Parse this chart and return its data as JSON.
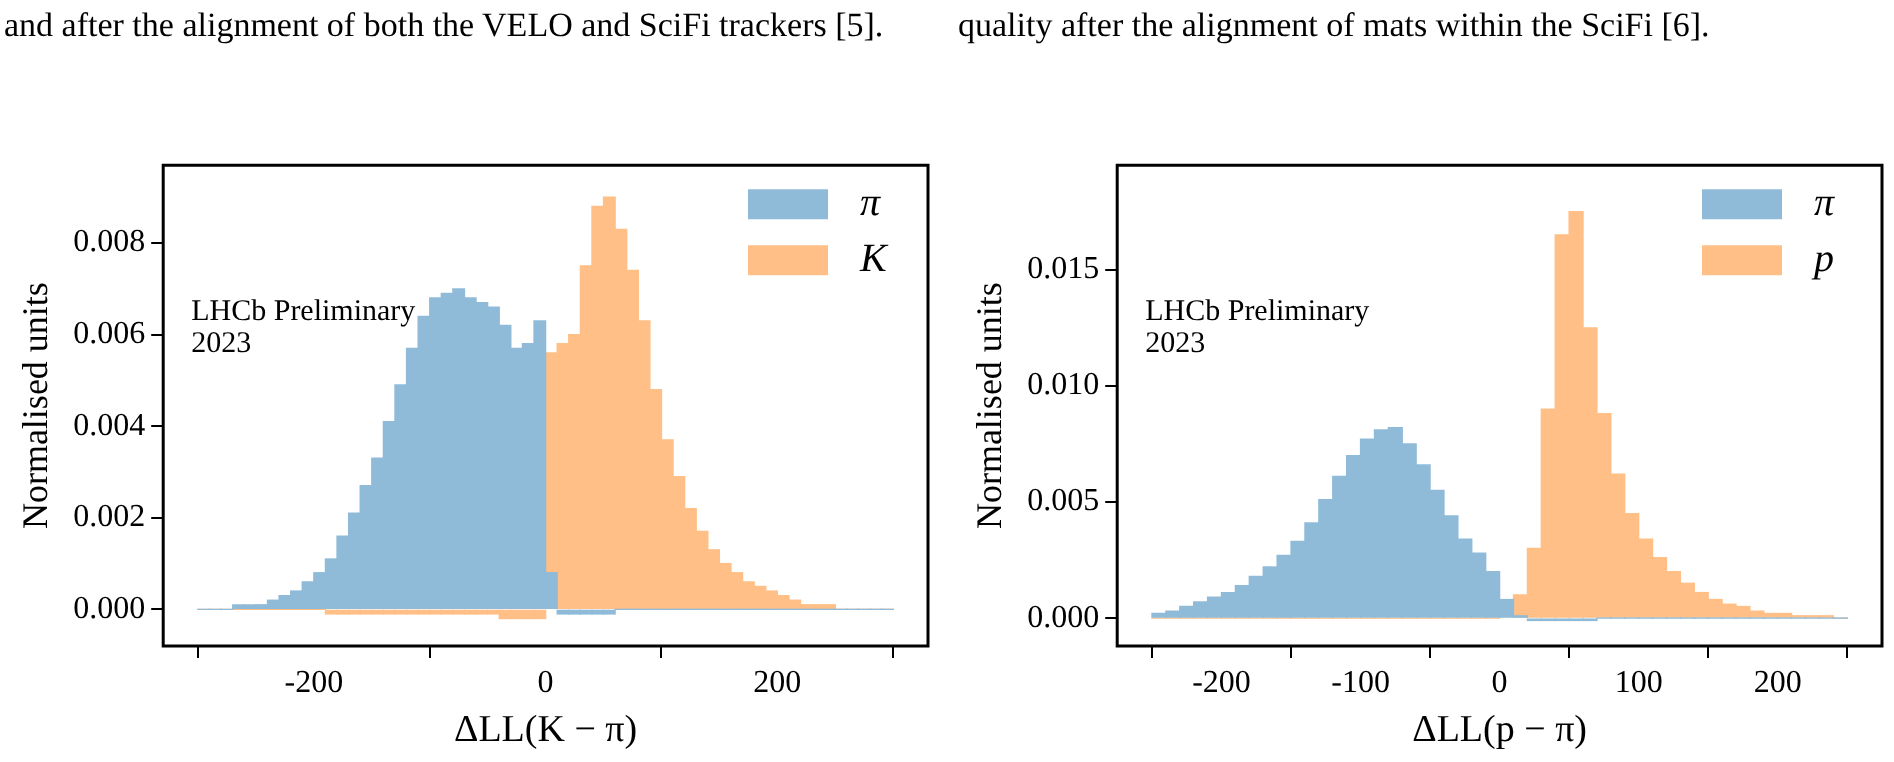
{
  "chart_data": [
    {
      "type": "histogram",
      "xlabel": "ΔLL(K − π)",
      "ylabel": "Normalised units",
      "legend": "top right",
      "grid": false,
      "annotations": [
        "and after the alignment of both the VELO and SciFi trackers [5].",
        "LHCb Preliminary\n2023"
      ],
      "bins": [
        -300,
        -290,
        -280,
        -270,
        -260,
        -250,
        -240,
        -230,
        -220,
        -210,
        -200,
        -190,
        -180,
        -170,
        -160,
        -150,
        -140,
        -130,
        -120,
        -110,
        -100,
        -90,
        -80,
        -70,
        -60,
        -50,
        -40,
        -30,
        -20,
        -10,
        0,
        10,
        20,
        30,
        40,
        50,
        60,
        70,
        80,
        90,
        100,
        110,
        120,
        130,
        140,
        150,
        160,
        170,
        180,
        190,
        200,
        210,
        220,
        230,
        240,
        250,
        260,
        270,
        280,
        290,
        300
      ],
      "series": [
        {
          "name": "π",
          "color": "#8fbbd9",
          "values": [
            0,
            0,
            0,
            0.0001,
            0.0001,
            0.0001,
            0.0002,
            0.0003,
            0.0004,
            0.0006,
            0.0008,
            0.0011,
            0.0016,
            0.0021,
            0.0027,
            0.0033,
            0.0041,
            0.0049,
            0.0057,
            0.0064,
            0.0068,
            0.0069,
            0.007,
            0.0068,
            0.0067,
            0.0066,
            0.0062,
            0.0057,
            0.0058,
            0.0063,
            0.0008,
            -0.0001,
            -0.0001,
            -0.0001,
            -0.0001,
            -0.0001,
            0,
            0,
            0,
            0,
            0,
            0,
            0,
            0,
            0,
            0,
            0,
            0,
            0,
            0,
            0,
            0,
            0,
            0,
            0,
            0,
            0,
            0,
            0,
            0
          ]
        },
        {
          "name": "K",
          "color": "#ffbf86",
          "values": [
            0,
            0,
            0,
            0,
            0,
            0,
            0,
            0,
            0,
            0,
            0,
            -0.0001,
            -0.0001,
            -0.0001,
            -0.0001,
            -0.0001,
            -0.0001,
            -0.0001,
            -0.0001,
            -0.0001,
            -0.0001,
            -0.0001,
            -0.0001,
            -0.0001,
            -0.0001,
            -0.0001,
            -0.0002,
            -0.0002,
            -0.0002,
            -0.0002,
            0.0056,
            0.0058,
            0.006,
            0.0075,
            0.0088,
            0.009,
            0.0083,
            0.0074,
            0.0063,
            0.0048,
            0.0037,
            0.0029,
            0.0022,
            0.0017,
            0.0013,
            0.001,
            0.0008,
            0.0006,
            0.0005,
            0.0004,
            0.0003,
            0.0002,
            0.0001,
            0.0001,
            0.0001,
            0,
            0,
            0,
            0,
            0
          ]
        }
      ],
      "xlim": [
        -330,
        330
      ],
      "xticks": [
        -200,
        0,
        200
      ],
      "ylim": [
        -0.0008,
        0.0097
      ],
      "yticks": [
        {
          "value": 0,
          "label": "0.000"
        },
        {
          "value": 0.002,
          "label": "0.002"
        },
        {
          "value": 0.004,
          "label": "0.004"
        },
        {
          "value": 0.006,
          "label": "0.006"
        },
        {
          "value": 0.008,
          "label": "0.008"
        }
      ]
    },
    {
      "type": "histogram",
      "xlabel": "ΔLL(p − π)",
      "ylabel": "Normalised units",
      "legend": "top right",
      "grid": false,
      "annotations": [
        "quality after the alignment of mats within the SciFi [6].",
        "LHCb Preliminary\n2023"
      ],
      "bins": [
        -250,
        -240,
        -230,
        -220,
        -210,
        -200,
        -190,
        -180,
        -170,
        -160,
        -150,
        -140,
        -130,
        -120,
        -110,
        -100,
        -90,
        -80,
        -70,
        -60,
        -50,
        -40,
        -30,
        -20,
        -10,
        0,
        10,
        20,
        30,
        40,
        50,
        60,
        70,
        80,
        90,
        100,
        110,
        120,
        130,
        140,
        150,
        160,
        170,
        180,
        190,
        200,
        210,
        220,
        230,
        240,
        250
      ],
      "series": [
        {
          "name": "π",
          "color": "#8fbbd9",
          "values": [
            0.0002,
            0.0003,
            0.0005,
            0.0007,
            0.0009,
            0.0011,
            0.0014,
            0.0018,
            0.0022,
            0.0027,
            0.0033,
            0.0041,
            0.0051,
            0.0061,
            0.007,
            0.0077,
            0.0081,
            0.0082,
            0.0075,
            0.0066,
            0.0055,
            0.0044,
            0.0034,
            0.0028,
            0.002,
            0.0008,
            0.0001,
            -0.0001,
            -0.0001,
            -0.0001,
            -0.0001,
            -0.0001,
            0,
            0,
            0,
            0,
            0,
            0,
            0,
            0,
            0,
            0,
            0,
            0,
            0,
            0,
            0,
            0,
            0,
            0
          ]
        },
        {
          "name": "p",
          "color": "#ffbf86",
          "values": [
            0,
            0,
            0,
            0,
            0,
            0,
            0,
            0,
            0,
            0,
            0,
            0,
            0,
            0,
            0,
            0,
            0,
            0,
            0,
            0,
            0,
            0,
            0,
            0,
            0,
            null,
            0.001,
            0.003,
            0.009,
            0.0165,
            0.0175,
            0.0125,
            0.0088,
            0.0062,
            0.0045,
            0.0034,
            0.0026,
            0.002,
            0.0015,
            0.0011,
            0.0008,
            0.0006,
            0.0005,
            0.0003,
            0.0002,
            0.0002,
            0.0001,
            0.0001,
            0.0001,
            0
          ]
        }
      ],
      "xlim": [
        -275,
        275
      ],
      "xticks": [
        -200,
        -100,
        0,
        100,
        200
      ],
      "ylim": [
        -0.0012,
        0.0195
      ],
      "yticks": [
        {
          "value": 0,
          "label": "0.000"
        },
        {
          "value": 0.005,
          "label": "0.005"
        },
        {
          "value": 0.01,
          "label": "0.010"
        },
        {
          "value": 0.015,
          "label": "0.015"
        }
      ]
    }
  ]
}
